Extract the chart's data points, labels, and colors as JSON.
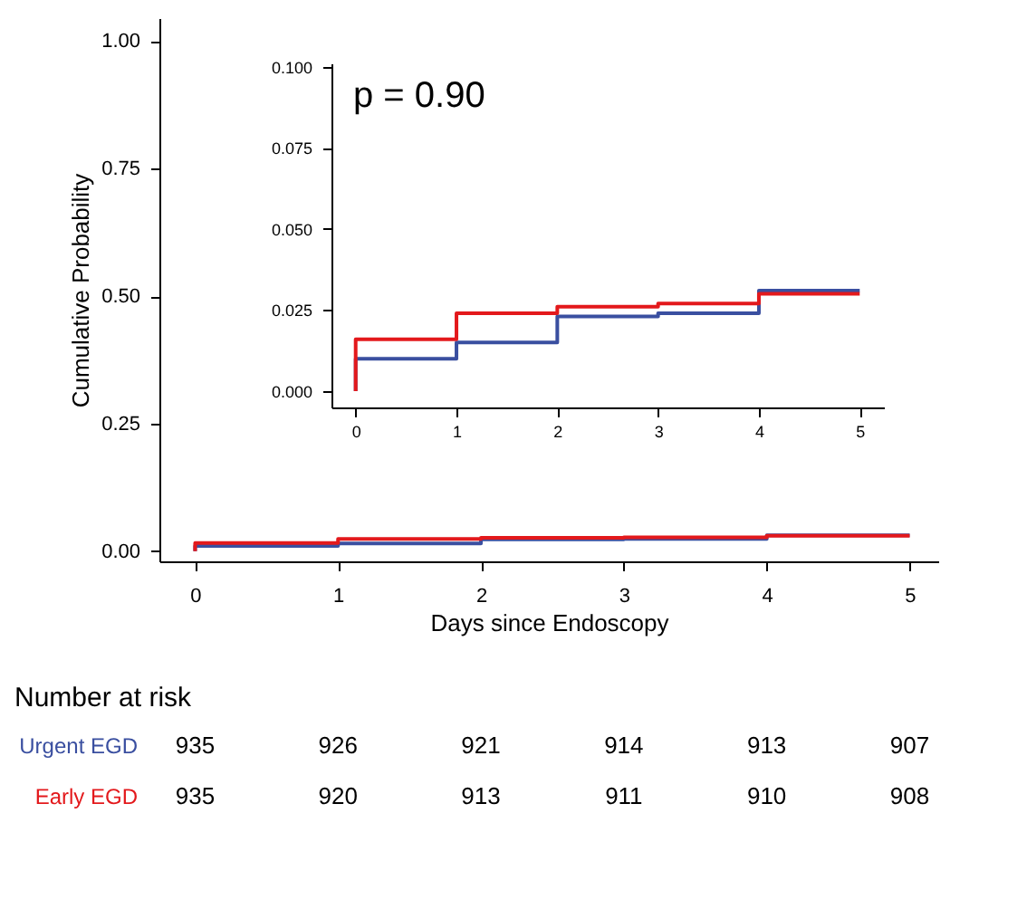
{
  "chart_data": [
    {
      "type": "step",
      "xlabel": "Days since Endoscopy",
      "ylabel": "Cumulative Probability",
      "xlim": [
        -0.25,
        5.2
      ],
      "ylim": [
        -0.02,
        1.045
      ],
      "xticks": [
        0,
        1,
        2,
        3,
        4,
        5
      ],
      "yticks": [
        {
          "value": 0,
          "label": "0.00"
        },
        {
          "value": 0.25,
          "label": "0.25"
        },
        {
          "value": 0.5,
          "label": "0.50"
        },
        {
          "value": 0.75,
          "label": "0.75"
        },
        {
          "value": 1,
          "label": "1.00"
        }
      ],
      "grid": false,
      "legend": false,
      "series": [
        {
          "name": "Urgent EGD",
          "color": "#3a4fa0",
          "x": [
            0,
            0,
            1,
            2,
            3,
            4,
            5
          ],
          "values": [
            0,
            0.01,
            0.015,
            0.023,
            0.024,
            0.031,
            0.031
          ]
        },
        {
          "name": "Early EGD",
          "color": "#e3191c",
          "x": [
            0,
            0,
            1,
            2,
            3,
            4,
            5
          ],
          "values": [
            0,
            0.016,
            0.024,
            0.026,
            0.027,
            0.03,
            0.03
          ]
        }
      ],
      "annotations": [
        "Number at risk",
        "935",
        "926",
        "921",
        "914",
        "913",
        "907",
        "935",
        "920",
        "913",
        "911",
        "910",
        "908"
      ]
    },
    {
      "type": "step",
      "xlim": [
        -0.24,
        5.24
      ],
      "ylim": [
        -0.005,
        0.101
      ],
      "xticks": [
        0,
        1,
        2,
        3,
        4,
        5
      ],
      "yticks": [
        {
          "value": 0,
          "label": "0.000"
        },
        {
          "value": 0.025,
          "label": "0.025"
        },
        {
          "value": 0.05,
          "label": "0.050"
        },
        {
          "value": 0.075,
          "label": "0.075"
        },
        {
          "value": 0.1,
          "label": "0.100"
        }
      ],
      "grid": false,
      "legend": false,
      "series": [
        {
          "color": "#3a4fa0",
          "x": [
            0,
            0,
            1,
            2,
            3,
            4,
            5
          ],
          "values": [
            0,
            0.01,
            0.015,
            0.023,
            0.024,
            0.031,
            0.031
          ]
        },
        {
          "color": "#e3191c",
          "x": [
            0,
            0,
            1,
            2,
            3,
            4,
            5
          ],
          "values": [
            0,
            0.016,
            0.024,
            0.026,
            0.027,
            0.03,
            0.03
          ]
        }
      ],
      "annotations": [
        "p = 0.90"
      ]
    }
  ]
}
